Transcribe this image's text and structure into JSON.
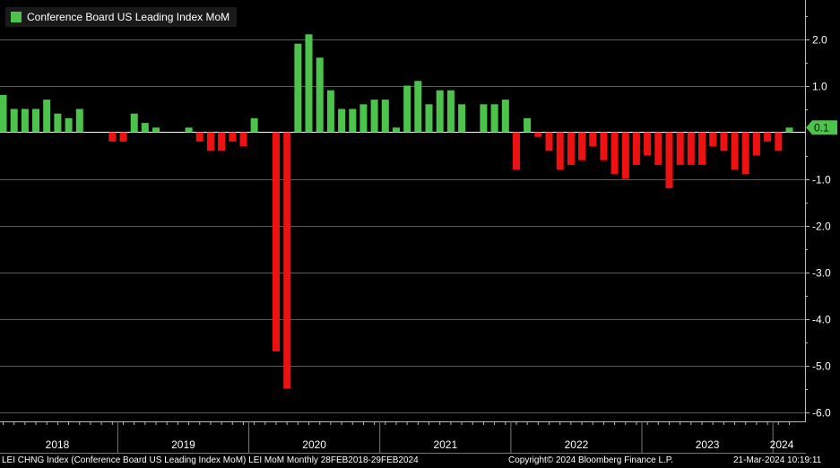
{
  "legend": {
    "label": "Conference Board US Leading Index MoM",
    "color": "#4cc44c"
  },
  "footer": {
    "left": "LEI CHNG Index (Conference Board US Leading Index MoM) LEI MoM  Monthly 28FEB2018-29FEB2024",
    "center": "Copyright© 2024 Bloomberg Finance L.P.",
    "right": "21-Mar-2024 10:19:11"
  },
  "colors": {
    "positive": "#4cc44c",
    "negative": "#ee1111",
    "grid": "#5a5a5a",
    "axis_text": "#ffffff",
    "last_value_bg": "#4cc44c"
  },
  "chart_data": {
    "type": "bar",
    "title": "Conference Board US Leading Index MoM",
    "ylim": [
      -6.2,
      2.8
    ],
    "yticks": [
      "2.0",
      "1.0",
      "-1.0",
      "-2.0",
      "-3.0",
      "-4.0",
      "-5.0",
      "-6.0"
    ],
    "ytick_values": [
      2,
      1,
      -1,
      -2,
      -3,
      -4,
      -5,
      -6
    ],
    "year_labels": [
      "2018",
      "2019",
      "2020",
      "2021",
      "2022",
      "2023",
      "2024"
    ],
    "last_value_label": "0.1",
    "last_value": 0.1,
    "start": "2018-02",
    "categories": [
      "2018-02",
      "2018-03",
      "2018-04",
      "2018-05",
      "2018-06",
      "2018-07",
      "2018-08",
      "2018-09",
      "2018-10",
      "2018-11",
      "2018-12",
      "2019-01",
      "2019-02",
      "2019-03",
      "2019-04",
      "2019-05",
      "2019-06",
      "2019-07",
      "2019-08",
      "2019-09",
      "2019-10",
      "2019-11",
      "2019-12",
      "2020-01",
      "2020-02",
      "2020-03",
      "2020-04",
      "2020-05",
      "2020-06",
      "2020-07",
      "2020-08",
      "2020-09",
      "2020-10",
      "2020-11",
      "2020-12",
      "2021-01",
      "2021-02",
      "2021-03",
      "2021-04",
      "2021-05",
      "2021-06",
      "2021-07",
      "2021-08",
      "2021-09",
      "2021-10",
      "2021-11",
      "2021-12",
      "2022-01",
      "2022-02",
      "2022-03",
      "2022-04",
      "2022-05",
      "2022-06",
      "2022-07",
      "2022-08",
      "2022-09",
      "2022-10",
      "2022-11",
      "2022-12",
      "2023-01",
      "2023-02",
      "2023-03",
      "2023-04",
      "2023-05",
      "2023-06",
      "2023-07",
      "2023-08",
      "2023-09",
      "2023-10",
      "2023-11",
      "2023-12",
      "2024-01",
      "2024-02"
    ],
    "values": [
      0.8,
      0.5,
      0.5,
      0.5,
      0.7,
      0.4,
      0.3,
      0.5,
      0.0,
      0.0,
      -0.2,
      -0.2,
      0.4,
      0.2,
      0.1,
      0.0,
      0.0,
      0.1,
      -0.2,
      -0.4,
      -0.4,
      -0.2,
      -0.3,
      0.3,
      0.0,
      -4.7,
      -5.5,
      1.9,
      2.1,
      1.6,
      0.9,
      0.5,
      0.5,
      0.6,
      0.7,
      0.7,
      0.1,
      1.0,
      1.1,
      0.6,
      0.9,
      0.9,
      0.6,
      0.0,
      0.6,
      0.6,
      0.7,
      -0.8,
      0.3,
      -0.1,
      -0.4,
      -0.8,
      -0.7,
      -0.6,
      -0.3,
      -0.6,
      -0.9,
      -1.0,
      -0.7,
      -0.5,
      -0.7,
      -1.2,
      -0.7,
      -0.7,
      -0.7,
      -0.3,
      -0.4,
      -0.8,
      -0.9,
      -0.5,
      -0.2,
      -0.4,
      0.1
    ]
  }
}
